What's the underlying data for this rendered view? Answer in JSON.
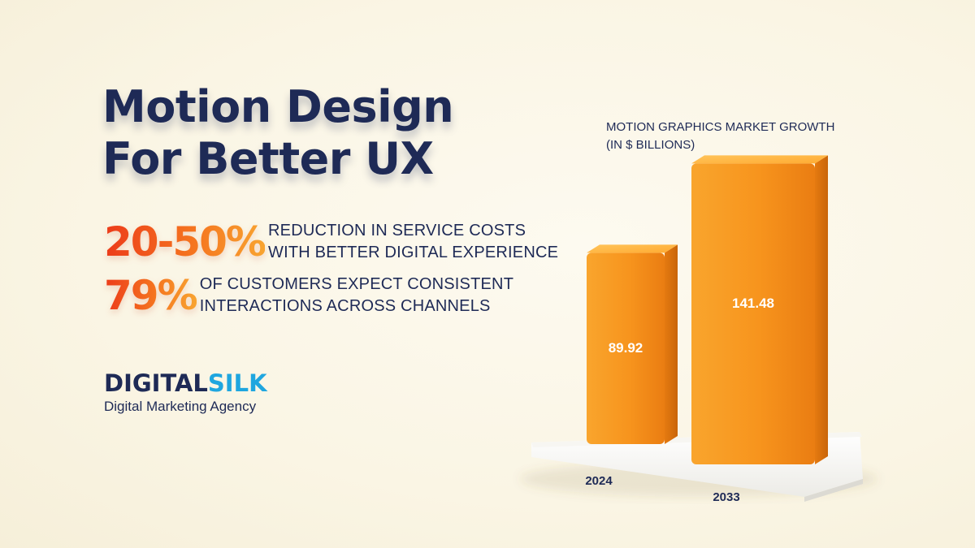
{
  "heading": {
    "line1": "Motion Design",
    "line2": "For Better UX"
  },
  "stats": [
    {
      "big": "20-50%",
      "line1": "REDUCTION IN SERVICE COSTS",
      "line2": "WITH BETTER DIGITAL EXPERIENCE"
    },
    {
      "big": "79%",
      "line1": "OF CUSTOMERS EXPECT CONSISTENT",
      "line2": "INTERACTIONS ACROSS CHANNELS"
    }
  ],
  "brand": {
    "word_dark": "DIGITAL",
    "word_light": "SILK",
    "tagline": "Digital Marketing Agency"
  },
  "colors": {
    "navy": "#1e2a56",
    "orange": "#f7931e",
    "orange_dark": "#e8780f",
    "orange_light": "#ffb340",
    "accent_red": "#ec3b1a",
    "brand_blue": "#1fa6df"
  },
  "chart_data": {
    "type": "bar",
    "title_line1": "MOTION GRAPHICS MARKET GROWTH",
    "title_line2": "(IN $ BILLIONS)",
    "categories": [
      "2024",
      "2033"
    ],
    "values": [
      89.92,
      141.48
    ],
    "value_labels": [
      "89.92",
      "141.48"
    ],
    "ylim": [
      0,
      160
    ],
    "style": "3d-columns",
    "grid": false,
    "legend": "none"
  }
}
